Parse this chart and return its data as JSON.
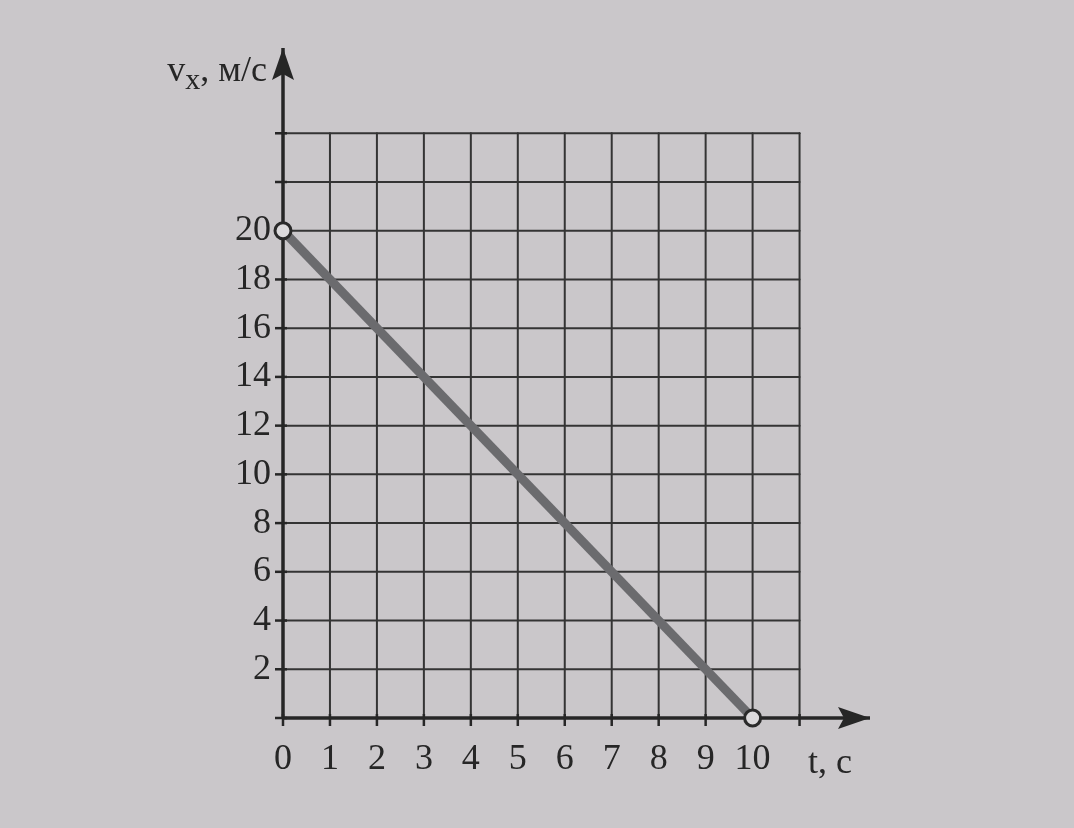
{
  "chart_data": {
    "type": "line",
    "xlabel": "t, с",
    "ylabel": "v$_{x}$, м/с",
    "x": [
      0,
      10
    ],
    "series": [
      {
        "color": "#6b6b6e",
        "values": [
          20,
          0
        ]
      }
    ],
    "xlim": [
      0,
      12.5
    ],
    "ylim": [
      0,
      27.5
    ],
    "xticks": [
      0,
      1,
      2,
      3,
      4,
      5,
      6,
      7,
      8,
      9,
      10,
      {
        "value": 11,
        "label": null
      }
    ],
    "yticks": [
      {
        "value": 0,
        "label": null
      },
      2,
      4,
      6,
      8,
      10,
      12,
      14,
      16,
      18,
      20,
      {
        "value": 22,
        "label": null
      },
      {
        "value": 24,
        "label": null
      }
    ],
    "grid": true,
    "marker": "circle"
  }
}
